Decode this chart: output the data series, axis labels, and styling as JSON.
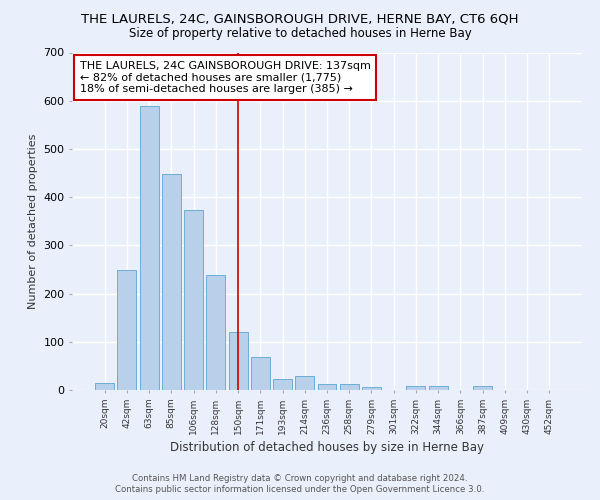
{
  "title": "THE LAURELS, 24C, GAINSBOROUGH DRIVE, HERNE BAY, CT6 6QH",
  "subtitle": "Size of property relative to detached houses in Herne Bay",
  "xlabel": "Distribution of detached houses by size in Herne Bay",
  "ylabel": "Number of detached properties",
  "annotation_line1": "THE LAURELS, 24C GAINSBOROUGH DRIVE: 137sqm",
  "annotation_line2": "← 82% of detached houses are smaller (1,775)",
  "annotation_line3": "18% of semi-detached houses are larger (385) →",
  "categories": [
    "20sqm",
    "42sqm",
    "63sqm",
    "85sqm",
    "106sqm",
    "128sqm",
    "150sqm",
    "171sqm",
    "193sqm",
    "214sqm",
    "236sqm",
    "258sqm",
    "279sqm",
    "301sqm",
    "322sqm",
    "344sqm",
    "366sqm",
    "387sqm",
    "409sqm",
    "430sqm",
    "452sqm"
  ],
  "values": [
    15,
    248,
    590,
    448,
    373,
    238,
    120,
    68,
    22,
    30,
    12,
    12,
    6,
    0,
    8,
    8,
    0,
    8,
    0,
    0,
    0
  ],
  "bar_color": "#b8d0ea",
  "bar_edge_color": "#6aaed6",
  "vline_x_index": 6,
  "vline_color": "#cc0000",
  "annotation_box_color": "#ffffff",
  "annotation_box_edge": "#cc0000",
  "ylim": [
    0,
    700
  ],
  "yticks": [
    0,
    100,
    200,
    300,
    400,
    500,
    600,
    700
  ],
  "bg_color": "#eaf0fb",
  "grid_color": "#ffffff",
  "footer1": "Contains HM Land Registry data © Crown copyright and database right 2024.",
  "footer2": "Contains public sector information licensed under the Open Government Licence 3.0."
}
